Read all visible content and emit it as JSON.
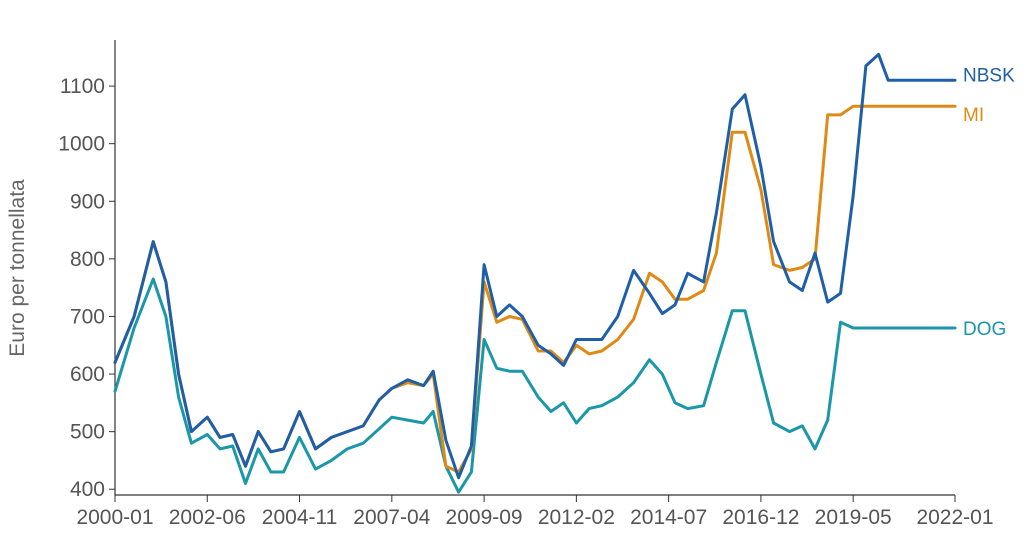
{
  "chart_data": {
    "type": "line",
    "title": "",
    "xlabel": "",
    "ylabel": "Euro per tonnellata",
    "xlim": [
      "2000-01",
      "2022-01"
    ],
    "ylim": [
      390,
      1180
    ],
    "x_ticks": [
      "2000-01",
      "2002-06",
      "2004-11",
      "2007-04",
      "2009-09",
      "2012-02",
      "2014-07",
      "2016-12",
      "2019-05",
      "2022-01"
    ],
    "y_ticks": [
      400,
      500,
      600,
      700,
      800,
      900,
      1000,
      1100
    ],
    "grid": false,
    "legend": "end-of-line labels",
    "colors": {
      "NBSK": "#1f5fa8",
      "MI": "#e08a16",
      "DOG": "#1a97a8"
    },
    "series": [
      {
        "name": "NBSK",
        "x": [
          "2000-01",
          "2000-07",
          "2001-01",
          "2001-05",
          "2001-09",
          "2002-01",
          "2002-06",
          "2002-10",
          "2003-02",
          "2003-06",
          "2003-10",
          "2004-02",
          "2004-06",
          "2004-11",
          "2005-04",
          "2005-09",
          "2006-02",
          "2006-07",
          "2006-12",
          "2007-04",
          "2007-09",
          "2008-02",
          "2008-05",
          "2008-09",
          "2009-01",
          "2009-05",
          "2009-09",
          "2010-01",
          "2010-05",
          "2010-09",
          "2011-02",
          "2011-06",
          "2011-10",
          "2012-02",
          "2012-06",
          "2012-10",
          "2013-03",
          "2013-08",
          "2014-01",
          "2014-05",
          "2014-09",
          "2015-01",
          "2015-06",
          "2015-10",
          "2016-03",
          "2016-07",
          "2016-12",
          "2017-04",
          "2017-09",
          "2018-01",
          "2018-05",
          "2018-09",
          "2019-01",
          "2019-05",
          "2019-09",
          "2020-01",
          "2020-04",
          "2020-08",
          "2021-01",
          "2021-05",
          "2021-09",
          "2022-01"
        ],
        "values": [
          620,
          700,
          830,
          760,
          600,
          500,
          525,
          490,
          495,
          440,
          500,
          465,
          470,
          535,
          470,
          490,
          500,
          510,
          555,
          575,
          590,
          580,
          605,
          485,
          420,
          475,
          790,
          700,
          720,
          700,
          650,
          635,
          615,
          660,
          660,
          660,
          700,
          780,
          740,
          705,
          720,
          775,
          760,
          880,
          1060,
          1085,
          960,
          830,
          760,
          745,
          810,
          725,
          740,
          910,
          1135,
          1155,
          1110,
          1110,
          1110,
          1110,
          1110,
          1110
        ]
      },
      {
        "name": "MI",
        "x": [
          "2000-01",
          "2000-07",
          "2001-01",
          "2001-05",
          "2001-09",
          "2002-01",
          "2002-06",
          "2002-10",
          "2003-02",
          "2003-06",
          "2003-10",
          "2004-02",
          "2004-06",
          "2004-11",
          "2005-04",
          "2005-09",
          "2006-02",
          "2006-07",
          "2006-12",
          "2007-04",
          "2007-09",
          "2008-02",
          "2008-05",
          "2008-09",
          "2009-01",
          "2009-05",
          "2009-09",
          "2010-01",
          "2010-05",
          "2010-09",
          "2011-02",
          "2011-06",
          "2011-10",
          "2012-02",
          "2012-06",
          "2012-10",
          "2013-03",
          "2013-08",
          "2014-01",
          "2014-05",
          "2014-09",
          "2015-01",
          "2015-06",
          "2015-10",
          "2016-03",
          "2016-07",
          "2016-12",
          "2017-04",
          "2017-09",
          "2018-01",
          "2018-05",
          "2018-09",
          "2019-01",
          "2019-05",
          "2019-09",
          "2020-01",
          "2020-04",
          "2020-08",
          "2021-01",
          "2021-05",
          "2021-09",
          "2022-01"
        ],
        "values": [
          620,
          700,
          830,
          760,
          600,
          500,
          525,
          490,
          495,
          440,
          500,
          465,
          470,
          535,
          470,
          490,
          500,
          510,
          555,
          575,
          585,
          580,
          600,
          440,
          430,
          470,
          760,
          690,
          700,
          695,
          640,
          640,
          620,
          650,
          635,
          640,
          660,
          695,
          775,
          760,
          730,
          730,
          745,
          810,
          1020,
          1020,
          920,
          790,
          780,
          785,
          800,
          1050,
          1050,
          1065,
          1065,
          1065,
          1065,
          1065,
          1065,
          1065,
          1065,
          1065
        ]
      },
      {
        "name": "DOG",
        "x": [
          "2000-01",
          "2000-07",
          "2001-01",
          "2001-05",
          "2001-09",
          "2002-01",
          "2002-06",
          "2002-10",
          "2003-02",
          "2003-06",
          "2003-10",
          "2004-02",
          "2004-06",
          "2004-11",
          "2005-04",
          "2005-09",
          "2006-02",
          "2006-07",
          "2006-12",
          "2007-04",
          "2007-09",
          "2008-02",
          "2008-05",
          "2008-09",
          "2009-01",
          "2009-05",
          "2009-09",
          "2010-01",
          "2010-05",
          "2010-09",
          "2011-02",
          "2011-06",
          "2011-10",
          "2012-02",
          "2012-06",
          "2012-10",
          "2013-03",
          "2013-08",
          "2014-01",
          "2014-05",
          "2014-09",
          "2015-01",
          "2015-06",
          "2015-10",
          "2016-03",
          "2016-07",
          "2016-12",
          "2017-04",
          "2017-09",
          "2018-01",
          "2018-05",
          "2018-09",
          "2019-01",
          "2019-05",
          "2019-09",
          "2020-01",
          "2020-04",
          "2020-08",
          "2021-01",
          "2021-05",
          "2021-09",
          "2022-01"
        ],
        "values": [
          570,
          680,
          765,
          700,
          560,
          480,
          495,
          470,
          475,
          410,
          470,
          430,
          430,
          490,
          435,
          450,
          470,
          480,
          505,
          525,
          520,
          515,
          535,
          440,
          395,
          430,
          660,
          610,
          605,
          605,
          560,
          535,
          550,
          515,
          540,
          545,
          560,
          585,
          625,
          600,
          550,
          540,
          545,
          620,
          710,
          710,
          600,
          515,
          500,
          510,
          470,
          520,
          690,
          680,
          680,
          680,
          680,
          680,
          680,
          680,
          680,
          680
        ]
      }
    ]
  }
}
